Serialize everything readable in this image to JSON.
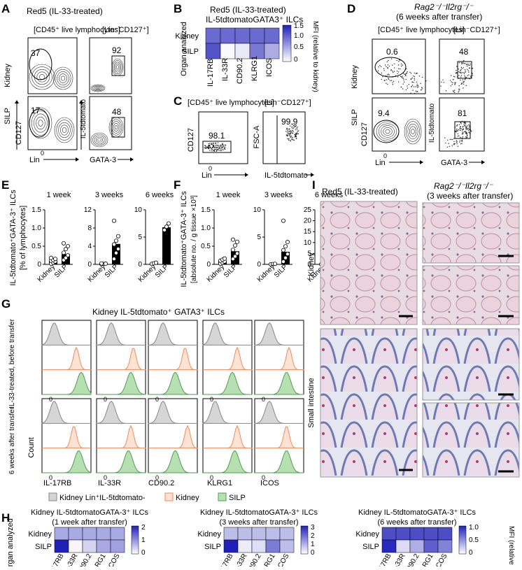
{
  "panels": {
    "A": "A",
    "B": "B",
    "C": "C",
    "D": "D",
    "E": "E",
    "F": "F",
    "G": "G",
    "H": "H",
    "I": "I"
  },
  "markers": [
    "IL-17RB",
    "IL-33R",
    "CD90.2",
    "KLRG1",
    "ICOS"
  ],
  "organs": [
    "Kidney",
    "SILP"
  ],
  "A": {
    "title": "Red5 (IL-33-treated)",
    "gate1": "[CD45⁺ live lymphocytes]",
    "gate2": "[Lin⁻CD127⁺]",
    "rows": [
      "Kidney",
      "SILP"
    ],
    "vals": [
      "37",
      "92",
      "17",
      "48"
    ],
    "xl1": "Lin",
    "yl1": "CD127",
    "xl2": "GATA-3",
    "yl2": "IL-5tdtomato",
    "zero": "0"
  },
  "B": {
    "title1": "Red5 (IL-33-treated)",
    "title2": "IL-5tdtomatoGATA3⁺ ILCs",
    "yaxis": "Organ analyzed",
    "scale_title": "MFI (relative to kidney)",
    "scale_ticks": [
      "1.5",
      "1.0",
      "0.5",
      "0"
    ],
    "kidney": [
      1,
      1,
      1,
      1,
      1
    ],
    "silp": [
      1.15,
      0.05,
      0.15,
      0.9,
      0.55
    ]
  },
  "C": {
    "gate1": "[CD45⁺ live lymphocytes]",
    "gate2": "[Lin⁻CD127⁺]",
    "v1": "98.1",
    "v2": "99.9",
    "xl1": "Lin",
    "yl1": "CD127",
    "xl2": "IL-5tdtomato",
    "yl2": "FSC-A",
    "zero": "0"
  },
  "D": {
    "title1": "Rag2⁻/⁻Il2rg⁻/⁻",
    "title2": "(6 weeks after transfer)",
    "gate1": "[CD45⁺ live lymphocytes]",
    "gate2": "[Lin⁻CD127⁺]",
    "rows": [
      "Kidney",
      "SILP"
    ],
    "vals": [
      "0.6",
      "48",
      "9.4",
      "81"
    ],
    "xl1": "Lin",
    "yl1": "CD127",
    "xl2": "GATA-3",
    "yl2": "IL-5tdtomato",
    "zero": "0"
  },
  "E": {
    "ylabel1": "IL-5tdtomato⁺GATA-3⁺ ILCs",
    "ylabel2": "[% of lymphocytes]",
    "groups": [
      {
        "title": "1 week",
        "ymax": 1.5,
        "ticks": [
          "0",
          "0.5",
          "1.0",
          "1.5"
        ],
        "kidney": 0.1,
        "silp": 0.28,
        "kpts": [
          0.02,
          0.05,
          0.08,
          0.1,
          0.12,
          0.15,
          0.18
        ],
        "spts": [
          0.12,
          0.18,
          0.25,
          0.32,
          0.42,
          0.5,
          0.58
        ]
      },
      {
        "title": "3 weeks",
        "ymax": 12,
        "ticks": [
          "0",
          "4",
          "8",
          "12"
        ],
        "kidney": 0.1,
        "silp": 4.5,
        "kpts": [
          0.05,
          0.1,
          0.15,
          0.2
        ],
        "spts": [
          1.2,
          2.5,
          3.4,
          4.4,
          5.2,
          6.2,
          9.6
        ]
      },
      {
        "title": "6 weeks",
        "ymax": 10,
        "ticks": [
          "0",
          "5",
          "10"
        ],
        "kidney": 0.2,
        "silp": 6.8,
        "kpts": [
          0.1,
          0.2,
          0.3
        ],
        "spts": [
          6.3,
          6.9,
          7.5
        ]
      }
    ],
    "cats": [
      "Kidney",
      "SILP"
    ]
  },
  "F": {
    "ylabel1": "IL-5tdtomato⁺GATA-3⁺ ILCs",
    "ylabel2": "[absolute no. / g tissue ×10³]",
    "groups": [
      {
        "title": "1 week",
        "ymax": 1.5,
        "ticks": [
          "0",
          "0.5",
          "1.0",
          "1.5"
        ],
        "kidney": 0.1,
        "silp": 0.36,
        "kpts": [
          0.02,
          0.05,
          0.08,
          0.1,
          0.13,
          0.16
        ],
        "spts": [
          0.15,
          0.22,
          0.3,
          0.4,
          0.52,
          0.62,
          0.68
        ]
      },
      {
        "title": "3 weeks",
        "ymax": 10,
        "ticks": [
          "0",
          "5",
          "10"
        ],
        "kidney": 0.05,
        "silp": 2.3,
        "kpts": [
          0.02,
          0.05,
          0.1
        ],
        "spts": [
          0.5,
          1.2,
          1.9,
          2.6,
          3.3,
          4.1,
          8
        ]
      },
      {
        "title": "6 weeks",
        "ymax": 25,
        "ticks": [
          "0",
          "5",
          "10",
          "15",
          "20",
          "25"
        ],
        "kidney": 0.1,
        "silp": 14.5,
        "kpts": [
          0.05,
          0.1,
          0.2
        ],
        "spts": [
          12,
          14,
          16,
          19
        ]
      }
    ],
    "cats": [
      "Kidney",
      "SILP"
    ]
  },
  "G": {
    "title": "Kidney IL-5tdtomato⁺ GATA3⁺ ILCs",
    "row1": "IL-33-treated, before transfer",
    "row2": "6 weeks after transfer",
    "count": "Count",
    "legend": [
      "Kidney Lin⁺IL-5tdtomato-",
      "Kidney",
      "SILP"
    ],
    "zero": "0"
  },
  "H": {
    "yaxis": "Organ analyzed",
    "scale_title": "MFI (relative to kidney)",
    "maps": [
      {
        "title1": "Kidney IL-5tdtomatoGATA-3⁺ ILCs",
        "title2": "(1 week after transfer)",
        "ticks": [
          "2",
          "1",
          "0"
        ],
        "vmax": 2.6,
        "kidney": [
          1,
          1,
          1,
          1,
          1
        ],
        "silp": [
          2.6,
          0.1,
          0.5,
          1.0,
          1.1
        ]
      },
      {
        "title1": "Kidney IL-5tdtomatoGATA-3⁺ ILCs",
        "title2": "(3 weeks after transfer)",
        "ticks": [
          "3",
          "2",
          "1",
          "0"
        ],
        "vmax": 3.4,
        "kidney": [
          1,
          1,
          1,
          1,
          1
        ],
        "silp": [
          3.4,
          0.3,
          0.5,
          2.0,
          1.0
        ]
      },
      {
        "title1": "Kidney IL-5tdtomatoGATA-3⁺ ILCs",
        "title2": "(6 weeks after transfer)",
        "ticks": [
          "1.0",
          "0.5",
          "0"
        ],
        "vmax": 1.25,
        "kidney": [
          1,
          1,
          1,
          1,
          1
        ],
        "silp": [
          1.2,
          0.2,
          0.45,
          0.9,
          0.7
        ]
      }
    ]
  },
  "I": {
    "title1": "Red5 (IL-33-treated)",
    "title2": "Rag2⁻/⁻Il2rg⁻/⁻",
    "title3": "(3 weeks after transfer)",
    "rows": [
      "Kidney",
      "Small intestine"
    ]
  },
  "colors": {
    "heat": "#2020b8",
    "bar": "#000000",
    "tomato": "#f28a5a",
    "silp": "#7fc47f",
    "grey": "#bdbdbd"
  }
}
